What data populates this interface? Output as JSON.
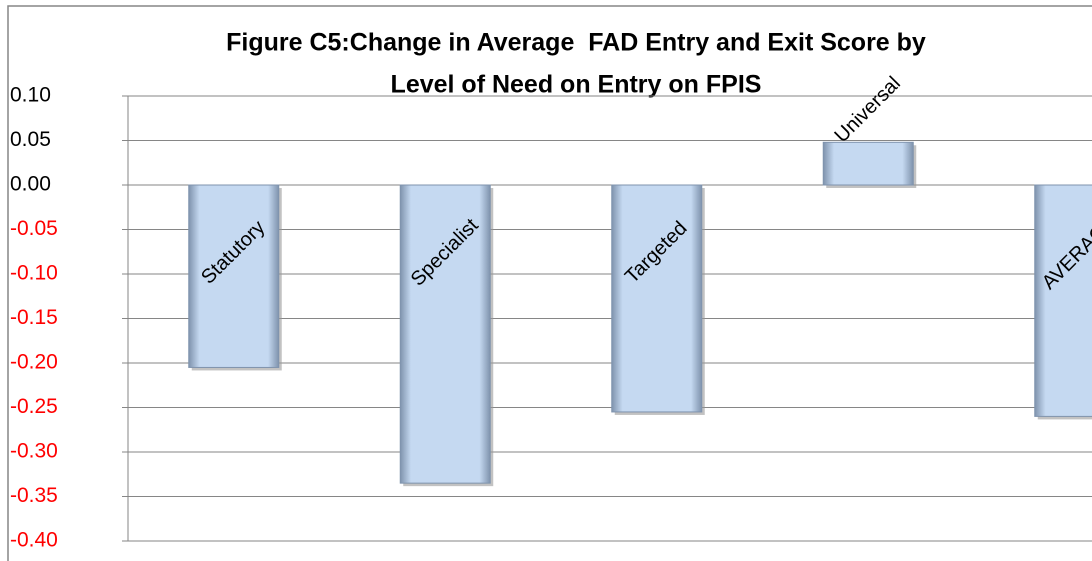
{
  "chart_data": {
    "type": "bar",
    "title": [
      "Figure C5:Change in Average  FAD Entry and Exit Score by",
      "Level of Need on Entry on FPIS"
    ],
    "categories": [
      "Statutory",
      "Specialist",
      "Targeted",
      "Universal",
      "AVERAGE"
    ],
    "values": [
      -0.205,
      -0.335,
      -0.255,
      0.048,
      -0.26
    ],
    "color": "#c5d9f1",
    "negative_tick_color": "#ff0000",
    "ylim": [
      -0.4,
      0.1
    ],
    "yticks": [
      {
        "value": 0.1,
        "label": "0.10"
      },
      {
        "value": 0.05,
        "label": "0.05"
      },
      {
        "value": 0,
        "label": "0.00"
      },
      {
        "value": -0.05,
        "label": "-0.05"
      },
      {
        "value": -0.1,
        "label": "-0.10"
      },
      {
        "value": -0.15,
        "label": "-0.15"
      },
      {
        "value": -0.2,
        "label": "-0.20"
      },
      {
        "value": -0.25,
        "label": "-0.25"
      },
      {
        "value": -0.3,
        "label": "-0.30"
      },
      {
        "value": -0.35,
        "label": "-0.35"
      },
      {
        "value": -0.4,
        "label": "-0.40"
      }
    ],
    "grid": true
  }
}
